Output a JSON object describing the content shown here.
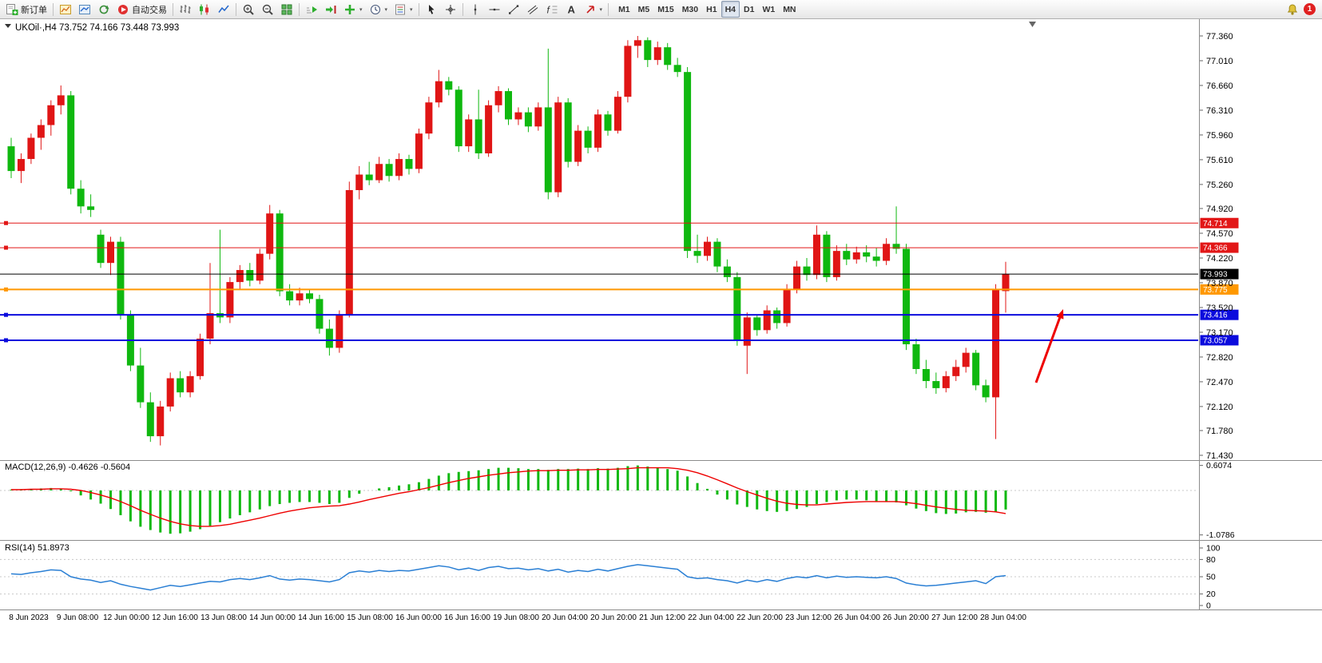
{
  "toolbar": {
    "items": [
      {
        "name": "new-order-button",
        "icon": "new-order",
        "label": "新订单"
      },
      "|",
      {
        "name": "new-chart-button",
        "icon": "new-chart"
      },
      {
        "name": "market-watch-button",
        "icon": "market-watch"
      },
      {
        "name": "refresh-button",
        "icon": "refresh"
      },
      {
        "name": "autotrading-button",
        "icon": "autotrade",
        "label": "自动交易"
      },
      "|",
      {
        "name": "bar-chart-button",
        "icon": "bars"
      },
      {
        "name": "candle-chart-button",
        "icon": "candles"
      },
      {
        "name": "line-chart-button",
        "icon": "linechart"
      },
      "|",
      {
        "name": "zoom-in-button",
        "icon": "zoom-in"
      },
      {
        "name": "zoom-out-button",
        "icon": "zoom-out"
      },
      {
        "name": "tile-windows-button",
        "icon": "tile"
      },
      "|",
      {
        "name": "auto-scroll-button",
        "icon": "autoscroll"
      },
      {
        "name": "chart-shift-button",
        "icon": "shift"
      },
      {
        "name": "indicators-button",
        "icon": "indicators",
        "caret": true
      },
      {
        "name": "periods-button",
        "icon": "periods",
        "caret": true
      },
      {
        "name": "templates-button",
        "icon": "templates",
        "caret": true
      },
      "|",
      {
        "name": "cursor-button",
        "icon": "cursor"
      },
      {
        "name": "crosshair-button",
        "icon": "crosshair"
      },
      "|",
      {
        "name": "vertical-line-button",
        "icon": "vline"
      },
      {
        "name": "horizontal-line-button",
        "icon": "hline"
      },
      {
        "name": "trendline-button",
        "icon": "trendline"
      },
      {
        "name": "channel-button",
        "icon": "channel"
      },
      {
        "name": "fibonacci-button",
        "icon": "fibonacci"
      },
      {
        "name": "text-button",
        "icon": "text"
      },
      {
        "name": "arrows-button",
        "icon": "arrows",
        "caret": true
      },
      "|"
    ],
    "timeframes": [
      "M1",
      "M5",
      "M15",
      "M30",
      "H1",
      "H4",
      "D1",
      "W1",
      "MN"
    ],
    "active_timeframe": "H4",
    "notification_count": "1"
  },
  "chart": {
    "symbol_title": "UKOil·,H4",
    "ohlc_text": "73.752 74.166 73.448 73.993",
    "price_axis_ticks": [
      "77.360",
      "77.010",
      "76.660",
      "76.310",
      "75.960",
      "75.610",
      "75.260",
      "74.920",
      "74.570",
      "74.220",
      "73.870",
      "73.520",
      "73.170",
      "72.820",
      "72.470",
      "72.120",
      "71.780",
      "71.430"
    ],
    "hlines": [
      {
        "name": "resistance-line-74714",
        "price": 74.714,
        "label": "74.714",
        "color": "#e21717",
        "width": 1,
        "handle": true
      },
      {
        "name": "resistance-line-74366",
        "price": 74.366,
        "label": "74.366",
        "color": "#e21717",
        "width": 1,
        "handle": true
      },
      {
        "name": "bid-price-line",
        "price": 73.993,
        "label": "73.993",
        "color": "#000000",
        "width": 1,
        "handle": false
      },
      {
        "name": "support-line-73775",
        "price": 73.775,
        "label": "73.775",
        "color": "#ff9800",
        "width": 2,
        "handle": true
      },
      {
        "name": "support-line-73416",
        "price": 73.416,
        "label": "73.416",
        "color": "#0b0bdd",
        "width": 2,
        "handle": true
      },
      {
        "name": "support-line-73057",
        "price": 73.057,
        "label": "73.057",
        "color": "#0b0bdd",
        "width": 2,
        "handle": true
      }
    ],
    "time_labels": [
      "8 Jun 2023",
      "9 Jun 08:00",
      "12 Jun 00:00",
      "12 Jun 16:00",
      "13 Jun 08:00",
      "14 Jun 00:00",
      "14 Jun 16:00",
      "15 Jun 08:00",
      "16 Jun 00:00",
      "16 Jun 16:00",
      "19 Jun 08:00",
      "20 Jun 04:00",
      "20 Jun 20:00",
      "21 Jun 12:00",
      "22 Jun 04:00",
      "22 Jun 20:00",
      "23 Jun 12:00",
      "26 Jun 04:00",
      "26 Jun 20:00",
      "27 Jun 12:00",
      "28 Jun 04:00"
    ],
    "macd": {
      "label": "MACD(12,26,9) -0.4626 -0.5604",
      "scale": [
        "0.6074",
        "-1.0786"
      ]
    },
    "rsi": {
      "label": "RSI(14) 51.8973",
      "scale": [
        "100",
        "80",
        "50",
        "20",
        "0"
      ],
      "levels": [
        80,
        50,
        20
      ]
    }
  },
  "colors": {
    "bull": "#e01515",
    "bear": "#0fb80f",
    "macd_hist": "#0fb80f",
    "macd_signal": "#ee0000",
    "rsi": "#2a7fd4",
    "annotation": "#ee0000"
  },
  "chart_data": {
    "type": "candlestick",
    "symbol": "UKOil",
    "timeframe": "H4",
    "color_convention": "red = bullish, green = bearish",
    "last_ohlc": {
      "open": 73.752,
      "high": 74.166,
      "low": 73.448,
      "close": 73.993
    },
    "y_range": [
      71.43,
      77.36
    ],
    "candles": [
      [
        75.8,
        75.92,
        75.35,
        75.45
      ],
      [
        75.45,
        75.7,
        75.28,
        75.62
      ],
      [
        75.62,
        75.98,
        75.55,
        75.92
      ],
      [
        75.92,
        76.18,
        75.75,
        76.1
      ],
      [
        76.1,
        76.45,
        75.95,
        76.38
      ],
      [
        76.38,
        76.66,
        76.25,
        76.52
      ],
      [
        76.52,
        76.58,
        75.12,
        75.2
      ],
      [
        75.2,
        75.32,
        74.85,
        74.95
      ],
      [
        74.95,
        75.12,
        74.8,
        74.9
      ],
      [
        74.55,
        74.62,
        74.08,
        74.15
      ],
      [
        74.15,
        74.52,
        73.98,
        74.45
      ],
      [
        74.45,
        74.52,
        73.35,
        73.42
      ],
      [
        73.42,
        73.48,
        72.62,
        72.7
      ],
      [
        72.7,
        72.95,
        72.1,
        72.18
      ],
      [
        72.18,
        72.32,
        71.62,
        71.7
      ],
      [
        71.7,
        72.2,
        71.57,
        72.12
      ],
      [
        72.12,
        72.6,
        72.05,
        72.52
      ],
      [
        72.52,
        72.62,
        72.25,
        72.32
      ],
      [
        72.32,
        72.62,
        72.25,
        72.55
      ],
      [
        72.55,
        73.15,
        72.5,
        73.08
      ],
      [
        73.08,
        74.15,
        73.0,
        73.44
      ],
      [
        73.44,
        74.62,
        73.3,
        73.38
      ],
      [
        73.38,
        73.95,
        73.3,
        73.88
      ],
      [
        73.88,
        74.12,
        73.78,
        74.05
      ],
      [
        74.05,
        74.15,
        73.82,
        73.9
      ],
      [
        73.9,
        74.35,
        73.85,
        74.28
      ],
      [
        74.28,
        74.97,
        74.2,
        74.85
      ],
      [
        74.85,
        74.9,
        73.68,
        73.75
      ],
      [
        73.75,
        73.85,
        73.55,
        73.62
      ],
      [
        73.62,
        73.8,
        73.55,
        73.72
      ],
      [
        73.72,
        73.78,
        73.58,
        73.64
      ],
      [
        73.64,
        73.7,
        73.15,
        73.22
      ],
      [
        73.22,
        73.35,
        72.84,
        72.95
      ],
      [
        72.95,
        73.48,
        72.88,
        73.42
      ],
      [
        73.42,
        75.3,
        73.38,
        75.18
      ],
      [
        75.18,
        75.52,
        75.05,
        75.4
      ],
      [
        75.4,
        75.58,
        75.25,
        75.32
      ],
      [
        75.32,
        75.65,
        75.28,
        75.55
      ],
      [
        75.55,
        75.62,
        75.3,
        75.38
      ],
      [
        75.38,
        75.7,
        75.32,
        75.62
      ],
      [
        75.62,
        75.68,
        75.4,
        75.48
      ],
      [
        75.48,
        76.05,
        75.42,
        75.98
      ],
      [
        75.98,
        76.5,
        75.9,
        76.42
      ],
      [
        76.42,
        76.88,
        76.35,
        76.72
      ],
      [
        76.72,
        76.78,
        76.52,
        76.6
      ],
      [
        76.6,
        76.65,
        75.72,
        75.8
      ],
      [
        75.8,
        76.25,
        75.72,
        76.18
      ],
      [
        76.18,
        76.6,
        75.62,
        75.7
      ],
      [
        75.7,
        76.45,
        75.65,
        76.38
      ],
      [
        76.38,
        76.65,
        76.28,
        76.58
      ],
      [
        76.58,
        76.62,
        76.1,
        76.18
      ],
      [
        76.18,
        76.35,
        76.1,
        76.28
      ],
      [
        76.28,
        76.35,
        76.0,
        76.08
      ],
      [
        76.08,
        76.42,
        76.02,
        76.35
      ],
      [
        76.35,
        77.18,
        75.05,
        75.15
      ],
      [
        75.15,
        76.5,
        75.08,
        76.42
      ],
      [
        76.42,
        76.48,
        75.5,
        75.58
      ],
      [
        75.58,
        76.1,
        75.52,
        76.02
      ],
      [
        76.02,
        76.08,
        75.7,
        75.78
      ],
      [
        75.78,
        76.32,
        75.72,
        76.25
      ],
      [
        76.25,
        76.3,
        75.95,
        76.02
      ],
      [
        76.02,
        76.58,
        75.98,
        76.5
      ],
      [
        76.5,
        77.3,
        76.42,
        77.22
      ],
      [
        77.22,
        77.36,
        77.05,
        77.3
      ],
      [
        77.3,
        77.34,
        76.92,
        77.02
      ],
      [
        77.02,
        77.28,
        76.95,
        77.2
      ],
      [
        77.2,
        77.26,
        76.88,
        76.95
      ],
      [
        76.95,
        77.05,
        76.78,
        76.85
      ],
      [
        76.85,
        76.92,
        74.22,
        74.32
      ],
      [
        74.32,
        74.55,
        74.15,
        74.25
      ],
      [
        74.25,
        74.52,
        74.18,
        74.45
      ],
      [
        74.45,
        74.5,
        74.02,
        74.1
      ],
      [
        74.1,
        74.2,
        73.88,
        73.95
      ],
      [
        73.95,
        74.02,
        72.98,
        73.05
      ],
      [
        72.98,
        73.45,
        72.58,
        73.38
      ],
      [
        73.38,
        73.42,
        73.12,
        73.2
      ],
      [
        73.2,
        73.55,
        73.15,
        73.48
      ],
      [
        73.48,
        73.52,
        73.22,
        73.3
      ],
      [
        73.3,
        73.85,
        73.25,
        73.78
      ],
      [
        73.78,
        74.18,
        73.72,
        74.1
      ],
      [
        74.1,
        74.22,
        73.9,
        73.98
      ],
      [
        73.98,
        74.68,
        73.92,
        74.55
      ],
      [
        74.55,
        74.6,
        73.88,
        73.95
      ],
      [
        73.95,
        74.4,
        73.9,
        74.32
      ],
      [
        74.32,
        74.42,
        74.12,
        74.2
      ],
      [
        74.2,
        74.38,
        74.14,
        74.3
      ],
      [
        74.3,
        74.4,
        74.16,
        74.24
      ],
      [
        74.24,
        74.36,
        74.1,
        74.18
      ],
      [
        74.18,
        74.5,
        74.12,
        74.42
      ],
      [
        74.42,
        74.95,
        74.28,
        74.35
      ],
      [
        74.35,
        74.42,
        72.92,
        73.0
      ],
      [
        73.0,
        73.08,
        72.58,
        72.65
      ],
      [
        72.65,
        72.78,
        72.38,
        72.48
      ],
      [
        72.48,
        72.6,
        72.3,
        72.38
      ],
      [
        72.38,
        72.62,
        72.32,
        72.55
      ],
      [
        72.55,
        72.78,
        72.48,
        72.68
      ],
      [
        72.68,
        72.95,
        72.6,
        72.88
      ],
      [
        72.88,
        72.92,
        72.35,
        72.42
      ],
      [
        72.42,
        72.5,
        72.18,
        72.25
      ],
      [
        72.25,
        73.85,
        71.66,
        73.78
      ],
      [
        73.752,
        74.166,
        73.448,
        73.993
      ]
    ],
    "indicators": {
      "macd": {
        "params": "12,26,9",
        "value": -0.4626,
        "signal_value": -0.5604,
        "scale_range": [
          0.6074,
          -1.0786
        ],
        "histogram": [
          0.02,
          0.03,
          0.04,
          0.05,
          0.06,
          0.05,
          -0.02,
          -0.12,
          -0.22,
          -0.32,
          -0.45,
          -0.6,
          -0.75,
          -0.88,
          -0.96,
          -1.02,
          -1.05,
          -1.04,
          -1.0,
          -0.94,
          -0.86,
          -0.77,
          -0.68,
          -0.6,
          -0.53,
          -0.46,
          -0.38,
          -0.33,
          -0.3,
          -0.28,
          -0.28,
          -0.3,
          -0.33,
          -0.3,
          -0.18,
          -0.08,
          0.0,
          0.05,
          0.08,
          0.12,
          0.15,
          0.2,
          0.28,
          0.36,
          0.42,
          0.45,
          0.47,
          0.49,
          0.52,
          0.55,
          0.55,
          0.54,
          0.52,
          0.52,
          0.5,
          0.52,
          0.52,
          0.53,
          0.52,
          0.54,
          0.53,
          0.55,
          0.59,
          0.607,
          0.58,
          0.56,
          0.52,
          0.48,
          0.34,
          0.18,
          0.04,
          -0.1,
          -0.22,
          -0.34,
          -0.4,
          -0.46,
          -0.5,
          -0.52,
          -0.5,
          -0.45,
          -0.4,
          -0.33,
          -0.28,
          -0.24,
          -0.22,
          -0.22,
          -0.24,
          -0.26,
          -0.27,
          -0.29,
          -0.36,
          -0.44,
          -0.5,
          -0.55,
          -0.57,
          -0.56,
          -0.53,
          -0.52,
          -0.54,
          -0.52,
          -0.4626
        ],
        "signal": [
          0.02,
          0.02,
          0.03,
          0.03,
          0.04,
          0.04,
          0.03,
          0.0,
          -0.05,
          -0.11,
          -0.18,
          -0.27,
          -0.37,
          -0.48,
          -0.58,
          -0.67,
          -0.75,
          -0.81,
          -0.85,
          -0.87,
          -0.87,
          -0.85,
          -0.82,
          -0.77,
          -0.72,
          -0.67,
          -0.61,
          -0.55,
          -0.5,
          -0.46,
          -0.42,
          -0.4,
          -0.38,
          -0.37,
          -0.33,
          -0.28,
          -0.22,
          -0.17,
          -0.12,
          -0.07,
          -0.03,
          0.02,
          0.07,
          0.13,
          0.19,
          0.24,
          0.29,
          0.33,
          0.37,
          0.4,
          0.43,
          0.45,
          0.47,
          0.48,
          0.48,
          0.49,
          0.49,
          0.5,
          0.5,
          0.51,
          0.51,
          0.52,
          0.53,
          0.55,
          0.55,
          0.55,
          0.55,
          0.53,
          0.49,
          0.43,
          0.35,
          0.26,
          0.16,
          0.06,
          -0.03,
          -0.11,
          -0.19,
          -0.26,
          -0.31,
          -0.34,
          -0.35,
          -0.35,
          -0.33,
          -0.31,
          -0.29,
          -0.28,
          -0.27,
          -0.27,
          -0.27,
          -0.27,
          -0.29,
          -0.32,
          -0.36,
          -0.4,
          -0.43,
          -0.46,
          -0.48,
          -0.49,
          -0.5,
          -0.52,
          -0.5604
        ]
      },
      "rsi": {
        "period": 14,
        "value": 51.8973,
        "values": [
          55,
          54,
          57,
          59,
          62,
          61,
          50,
          46,
          44,
          40,
          43,
          37,
          33,
          30,
          27,
          31,
          35,
          33,
          36,
          39,
          42,
          41,
          45,
          47,
          45,
          48,
          52,
          46,
          44,
          46,
          45,
          43,
          41,
          45,
          57,
          60,
          58,
          61,
          59,
          61,
          60,
          63,
          66,
          69,
          67,
          62,
          65,
          61,
          66,
          68,
          64,
          65,
          62,
          64,
          60,
          63,
          58,
          61,
          59,
          63,
          60,
          64,
          68,
          71,
          69,
          67,
          65,
          63,
          50,
          47,
          48,
          45,
          43,
          39,
          44,
          41,
          45,
          42,
          47,
          50,
          48,
          52,
          48,
          51,
          49,
          50,
          49,
          48,
          50,
          47,
          39,
          36,
          34,
          35,
          37,
          39,
          41,
          43,
          38,
          50,
          51.8973
        ]
      }
    },
    "horizontal_levels": [
      74.714,
      74.366,
      73.993,
      73.775,
      73.416,
      73.057
    ]
  }
}
